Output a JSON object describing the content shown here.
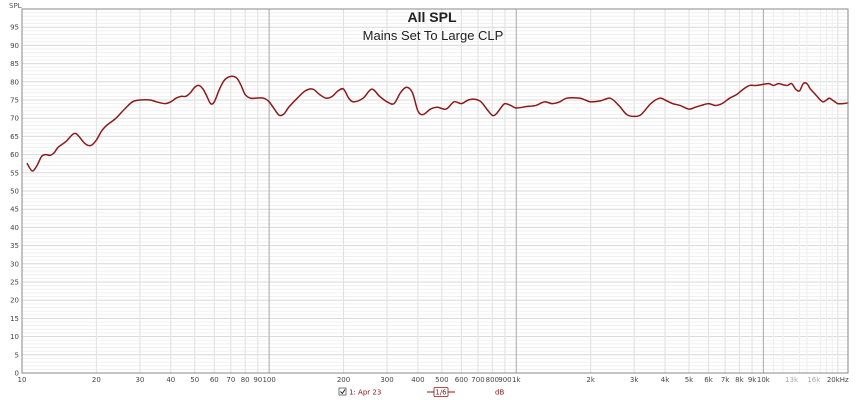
{
  "chart_data": {
    "type": "line",
    "title": "All SPL",
    "subtitle": "Mains Set To Large CLP",
    "ylabel": "SPL",
    "xlabel": "",
    "x_scale": "log",
    "xlim": [
      10,
      22000
    ],
    "ylim": [
      0,
      100
    ],
    "grid": true,
    "y_ticks": [
      0,
      5,
      10,
      15,
      20,
      25,
      30,
      35,
      40,
      45,
      50,
      55,
      60,
      65,
      70,
      75,
      80,
      85,
      90,
      95
    ],
    "x_ticks": [
      {
        "v": 10,
        "l": "10"
      },
      {
        "v": 20,
        "l": "20"
      },
      {
        "v": 30,
        "l": "30"
      },
      {
        "v": 40,
        "l": "40"
      },
      {
        "v": 50,
        "l": "50"
      },
      {
        "v": 60,
        "l": "60"
      },
      {
        "v": 70,
        "l": "70"
      },
      {
        "v": 80,
        "l": "80"
      },
      {
        "v": 90,
        "l": "90"
      },
      {
        "v": 100,
        "l": "100"
      },
      {
        "v": 200,
        "l": "200"
      },
      {
        "v": 300,
        "l": "300"
      },
      {
        "v": 400,
        "l": "400"
      },
      {
        "v": 500,
        "l": "500"
      },
      {
        "v": 600,
        "l": "600"
      },
      {
        "v": 700,
        "l": "700"
      },
      {
        "v": 800,
        "l": "800"
      },
      {
        "v": 900,
        "l": "900"
      },
      {
        "v": 1000,
        "l": "1k"
      },
      {
        "v": 2000,
        "l": "2k"
      },
      {
        "v": 3000,
        "l": "3k"
      },
      {
        "v": 4000,
        "l": "4k"
      },
      {
        "v": 5000,
        "l": "5k"
      },
      {
        "v": 6000,
        "l": "6k"
      },
      {
        "v": 7000,
        "l": "7k"
      },
      {
        "v": 8000,
        "l": "8k"
      },
      {
        "v": 9000,
        "l": "9k"
      },
      {
        "v": 10000,
        "l": "10k"
      },
      {
        "v": 13000,
        "l": "13k",
        "muted": true
      },
      {
        "v": 16000,
        "l": "16k",
        "muted": true
      },
      {
        "v": 20000,
        "l": "20kHz"
      }
    ],
    "series": [
      {
        "name": "1: Apr 23",
        "color": "#8b1a1a",
        "points": [
          [
            10.5,
            57.5
          ],
          [
            11,
            55.5
          ],
          [
            11.5,
            57
          ],
          [
            12,
            59.5
          ],
          [
            12.5,
            60
          ],
          [
            13,
            59.8
          ],
          [
            13.5,
            60.5
          ],
          [
            14,
            62
          ],
          [
            15,
            63.5
          ],
          [
            16,
            65.5
          ],
          [
            16.5,
            65.8
          ],
          [
            17,
            65
          ],
          [
            18,
            63
          ],
          [
            19,
            62.5
          ],
          [
            20,
            64
          ],
          [
            21,
            66.5
          ],
          [
            22,
            68
          ],
          [
            24,
            70
          ],
          [
            26,
            72.5
          ],
          [
            28,
            74.5
          ],
          [
            30,
            75
          ],
          [
            33,
            75
          ],
          [
            35,
            74.5
          ],
          [
            38,
            74
          ],
          [
            40,
            74.5
          ],
          [
            42,
            75.5
          ],
          [
            44,
            76
          ],
          [
            46,
            76
          ],
          [
            48,
            77
          ],
          [
            50,
            78.5
          ],
          [
            52,
            79
          ],
          [
            54,
            78
          ],
          [
            56,
            76
          ],
          [
            58,
            74
          ],
          [
            60,
            74.5
          ],
          [
            63,
            78
          ],
          [
            66,
            80.5
          ],
          [
            70,
            81.5
          ],
          [
            74,
            81
          ],
          [
            77,
            79
          ],
          [
            80,
            76.5
          ],
          [
            84,
            75.5
          ],
          [
            88,
            75.5
          ],
          [
            95,
            75.5
          ],
          [
            100,
            74.5
          ],
          [
            105,
            72.5
          ],
          [
            110,
            70.8
          ],
          [
            115,
            71.2
          ],
          [
            120,
            73
          ],
          [
            130,
            75.5
          ],
          [
            140,
            77.5
          ],
          [
            150,
            78
          ],
          [
            160,
            76.5
          ],
          [
            170,
            75.5
          ],
          [
            180,
            76
          ],
          [
            190,
            77.5
          ],
          [
            200,
            78
          ],
          [
            210,
            75.5
          ],
          [
            220,
            74.5
          ],
          [
            240,
            75.5
          ],
          [
            260,
            78
          ],
          [
            280,
            76
          ],
          [
            300,
            74.5
          ],
          [
            320,
            74
          ],
          [
            340,
            77
          ],
          [
            360,
            78.5
          ],
          [
            380,
            77
          ],
          [
            400,
            72
          ],
          [
            420,
            71
          ],
          [
            450,
            72.5
          ],
          [
            480,
            73
          ],
          [
            520,
            72.5
          ],
          [
            560,
            74.5
          ],
          [
            600,
            74
          ],
          [
            640,
            75
          ],
          [
            680,
            75.2
          ],
          [
            720,
            74.5
          ],
          [
            760,
            72.5
          ],
          [
            800,
            70.8
          ],
          [
            830,
            71.2
          ],
          [
            870,
            73
          ],
          [
            900,
            74
          ],
          [
            950,
            73.5
          ],
          [
            1000,
            72.8
          ],
          [
            1100,
            73.2
          ],
          [
            1200,
            73.5
          ],
          [
            1300,
            74.5
          ],
          [
            1400,
            74
          ],
          [
            1500,
            74.5
          ],
          [
            1600,
            75.5
          ],
          [
            1800,
            75.5
          ],
          [
            1900,
            75
          ],
          [
            2000,
            74.5
          ],
          [
            2200,
            74.8
          ],
          [
            2400,
            75.5
          ],
          [
            2600,
            73.5
          ],
          [
            2800,
            71
          ],
          [
            3000,
            70.5
          ],
          [
            3200,
            71
          ],
          [
            3500,
            74
          ],
          [
            3800,
            75.5
          ],
          [
            4000,
            75
          ],
          [
            4300,
            74
          ],
          [
            4600,
            73.5
          ],
          [
            5000,
            72.5
          ],
          [
            5300,
            73
          ],
          [
            5600,
            73.5
          ],
          [
            6000,
            74
          ],
          [
            6400,
            73.5
          ],
          [
            6800,
            74
          ],
          [
            7300,
            75.5
          ],
          [
            7800,
            76.5
          ],
          [
            8300,
            78
          ],
          [
            8800,
            79
          ],
          [
            9300,
            79
          ],
          [
            9800,
            79.2
          ],
          [
            10500,
            79.5
          ],
          [
            11000,
            79
          ],
          [
            11500,
            79.5
          ],
          [
            12000,
            79.2
          ],
          [
            12500,
            79
          ],
          [
            13000,
            79.5
          ],
          [
            13500,
            78
          ],
          [
            14000,
            77.5
          ],
          [
            14500,
            79.5
          ],
          [
            15000,
            79.5
          ],
          [
            15500,
            78
          ],
          [
            16000,
            77
          ],
          [
            16500,
            76
          ],
          [
            17000,
            75
          ],
          [
            17500,
            74.5
          ],
          [
            18000,
            75
          ],
          [
            18500,
            75.5
          ],
          [
            19000,
            75
          ],
          [
            19500,
            74.5
          ],
          [
            20000,
            74
          ],
          [
            21000,
            74
          ],
          [
            22000,
            74.2
          ]
        ]
      }
    ]
  },
  "legend": {
    "checkbox_checked": true,
    "entry_label": "1: Apr 23",
    "smoothing_label": "1/6",
    "unit_label": "dB",
    "color": "#8b1a1a"
  }
}
